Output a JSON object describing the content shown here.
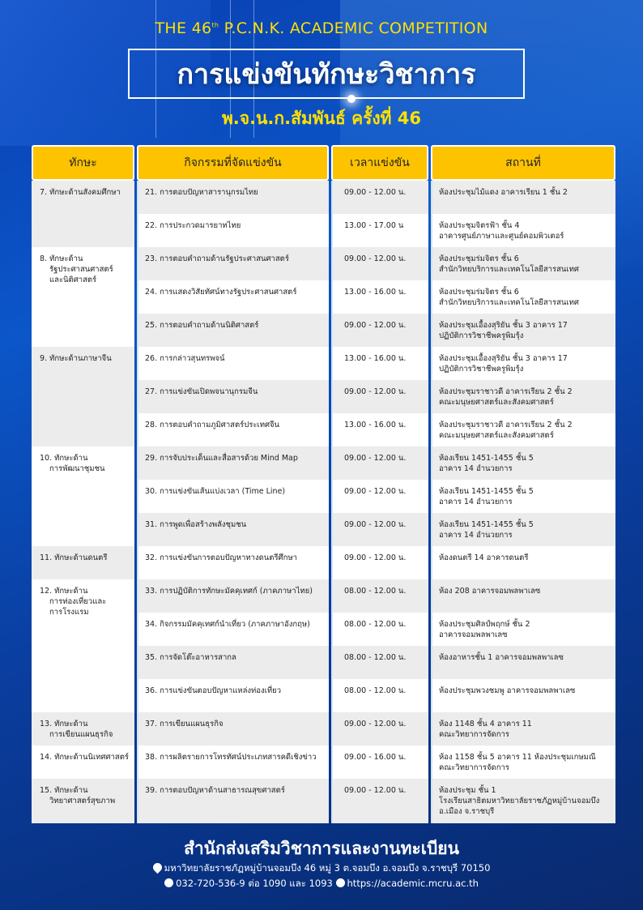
{
  "header": {
    "top_title_pre": "THE 46",
    "top_title_sup": "th",
    "top_title_post": " P.C.N.K. ACADEMIC COMPETITION",
    "title": "การแข่งขันทักษะวิชาการ",
    "subtitle": "พ.จ.น.ก.สัมพันธ์ ครั้งที่ 46"
  },
  "colors": {
    "header_bg": "#fdc300",
    "title_yellow": "#ffe000",
    "background": "#0b56c9"
  },
  "table": {
    "columns": [
      "ทักษะ",
      "กิจกรรมที่จัดแข่งขัน",
      "เวลาแข่งขัน",
      "สถานที่"
    ],
    "groups": [
      {
        "skill": [
          "7. ทักษะด้านสังคมศึกษา"
        ],
        "rows": [
          {
            "activity": "21. การตอบปัญหาสารานุกรมไทย",
            "time": "09.00 - 12.00 น.",
            "venue": [
              "ห้องประชุมไม้แดง อาคารเรียน 1 ชั้น 2"
            ]
          },
          {
            "activity": "22. การประกวดมารยาทไทย",
            "time": "13.00 - 17.00 น",
            "venue": [
              "ห้องประชุมจิตรฟ้า ชั้น 4",
              "อาคารศูนย์ภาษาและศูนย์คอมพิวเตอร์"
            ]
          }
        ]
      },
      {
        "skill": [
          "8. ทักษะด้าน",
          "รัฐประศาสนศาสตร์",
          "และนิติศาสตร์"
        ],
        "rows": [
          {
            "activity": "23. การตอบคำถามด้านรัฐประศาสนศาสตร์",
            "time": "09.00 - 12.00 น.",
            "venue": [
              "ห้องประชุมร่มจิตร ชั้น 6",
              "สำนักวิทยบริการและเทคโนโลยีสารสนเทศ"
            ]
          },
          {
            "activity": "24. การแสดงวิสัยทัศน์ทางรัฐประศาสนศาสตร์",
            "time": "13.00 - 16.00 น.",
            "venue": [
              "ห้องประชุมร่มจิตร ชั้น 6",
              "สำนักวิทยบริการและเทคโนโลยีสารสนเทศ"
            ]
          },
          {
            "activity": "25. การตอบคำถามด้านนิติศาสตร์",
            "time": "09.00 - 12.00 น.",
            "venue": [
              "ห้องประชุมเอื้องสุริยัน ชั้น 3 อาคาร 17",
              "ปฏิบัติการวิชาชีพครูพิมรุ้ง"
            ]
          }
        ]
      },
      {
        "skill": [
          "9. ทักษะด้านภาษาจีน"
        ],
        "rows": [
          {
            "activity": "26. การกล่าวสุนทรพจน์",
            "time": "13.00 - 16.00 น.",
            "venue": [
              "ห้องประชุมเอื้องสุริยัน ชั้น 3 อาคาร 17",
              "ปฏิบัติการวิชาชีพครูพิมรุ้ง"
            ]
          },
          {
            "activity": "27. การแข่งขันเปิดพจนานุกรมจีน",
            "time": "09.00 - 12.00 น.",
            "venue": [
              "ห้องประชุมราชาวดี อาคารเรียน 2 ชั้น 2",
              "คณะมนุษยศาสตร์และสังคมศาสตร์"
            ]
          },
          {
            "activity": "28. การตอบคำถามภูมิศาสตร์ประเทศจีน",
            "time": "13.00 - 16.00 น.",
            "venue": [
              "ห้องประชุมราชาวดี อาคารเรียน 2 ชั้น 2",
              "คณะมนุษยศาสตร์และสังคมศาสตร์"
            ]
          }
        ]
      },
      {
        "skill": [
          "10. ทักษะด้าน",
          "การพัฒนาชุมชน"
        ],
        "rows": [
          {
            "activity": "29. การจับประเด็นและสื่อสารด้วย Mind Map",
            "time": "09.00 - 12.00 น.",
            "venue": [
              "ห้องเรียน 1451-1455 ชั้น 5",
              "อาคาร 14 อำนวยการ"
            ]
          },
          {
            "activity": "30. การแข่งขันเส้นแบ่งเวลา (Time Line)",
            "time": "09.00 - 12.00 น.",
            "venue": [
              "ห้องเรียน 1451-1455 ชั้น 5",
              "อาคาร 14 อำนวยการ"
            ]
          },
          {
            "activity": "31. การพูดเพื่อสร้างพลังชุมชน",
            "time": "09.00 - 12.00 น.",
            "venue": [
              "ห้องเรียน 1451-1455 ชั้น 5",
              "อาคาร 14 อำนวยการ"
            ]
          }
        ]
      },
      {
        "skill": [
          "11. ทักษะด้านดนตรี"
        ],
        "rows": [
          {
            "activity": "32. การแข่งขันการตอบปัญหาทางดนตรีศึกษา",
            "time": "09.00 - 12.00 น.",
            "venue": [
              "ห้องดนตรี 14 อาคารดนตรี"
            ]
          }
        ]
      },
      {
        "skill": [
          "12. ทักษะด้าน",
          "การท่องเที่ยวและ",
          "การโรงแรม"
        ],
        "rows": [
          {
            "activity": "33. การปฏิบัติการทักษะมัคคุเทศก์ (ภาคภาษาไทย)",
            "time": "08.00 - 12.00 น.",
            "venue": [
              "ห้อง 208 อาคารจอมพลพาเลซ"
            ]
          },
          {
            "activity": "34. กิจกรรมมัคคุเทศก์นำเที่ยว (ภาคภาษาอังกฤษ)",
            "time": "08.00 - 12.00 น.",
            "venue": [
              "ห้องประชุมศิลป์พฤกษ์ ชั้น 2",
              "อาคารจอมพลพาเลซ"
            ]
          },
          {
            "activity": "35. การจัดโต๊ะอาหารสากล",
            "time": "08.00 - 12.00 น.",
            "venue": [
              "ห้องอาหารชั้น 1 อาคารจอมพลพาเลซ"
            ]
          },
          {
            "activity": "36. การแข่งขันตอบปัญหาแหล่งท่องเที่ยว",
            "time": "08.00 - 12.00 น.",
            "venue": [
              "ห้องประชุมพวงชมพู อาคารจอมพลพาเลซ"
            ]
          }
        ]
      },
      {
        "skill": [
          "13. ทักษะด้าน",
          "การเขียนแผนธุรกิจ"
        ],
        "rows": [
          {
            "activity": "37. การเขียนแผนธุรกิจ",
            "time": "09.00 - 12.00 น.",
            "venue": [
              "ห้อง 1148 ชั้น 4 อาคาร 11",
              "คณะวิทยาการจัดการ"
            ]
          }
        ]
      },
      {
        "skill": [
          "14. ทักษะด้านนิเทศศาสตร์"
        ],
        "rows": [
          {
            "activity": "38. การผลิตรายการโทรทัศน์ประเภทสารคดีเชิงข่าว",
            "time": "09.00 - 16.00 น.",
            "venue": [
              "ห้อง 1158 ชั้น 5 อาคาร 11 ห้องประชุมเกษมณี",
              "คณะวิทยาการจัดการ"
            ]
          }
        ]
      },
      {
        "skill": [
          "15. ทักษะด้าน",
          "วิทยาศาสตร์สุขภาพ"
        ],
        "rows": [
          {
            "activity": "39. การตอบปัญหาด้านสาธารณสุขศาสตร์",
            "time": "09.00 - 12.00 น.",
            "venue": [
              "ห้องประชุม ชั้น 1",
              "โรงเรียนสาธิตมหาวิทยาลัยราชภัฏหมู่บ้านจอมบึง",
              "อ.เมือง จ.ราชบุรี"
            ]
          }
        ]
      }
    ]
  },
  "footer": {
    "office": "สำนักส่งเสริมวิชาการและงานทะเบียน",
    "address": "มหาวิทยาลัยราชภัฏหมู่บ้านจอมบึง 46 หมู่ 3 ต.จอมบึง อ.จอมบึง จ.ราชบุรี 70150",
    "phone": "032-720-536-9 ต่อ 1090 และ 1093",
    "website": "https://academic.mcru.ac.th",
    "icons": [
      "location-pin-icon",
      "phone-icon",
      "globe-icon"
    ]
  }
}
